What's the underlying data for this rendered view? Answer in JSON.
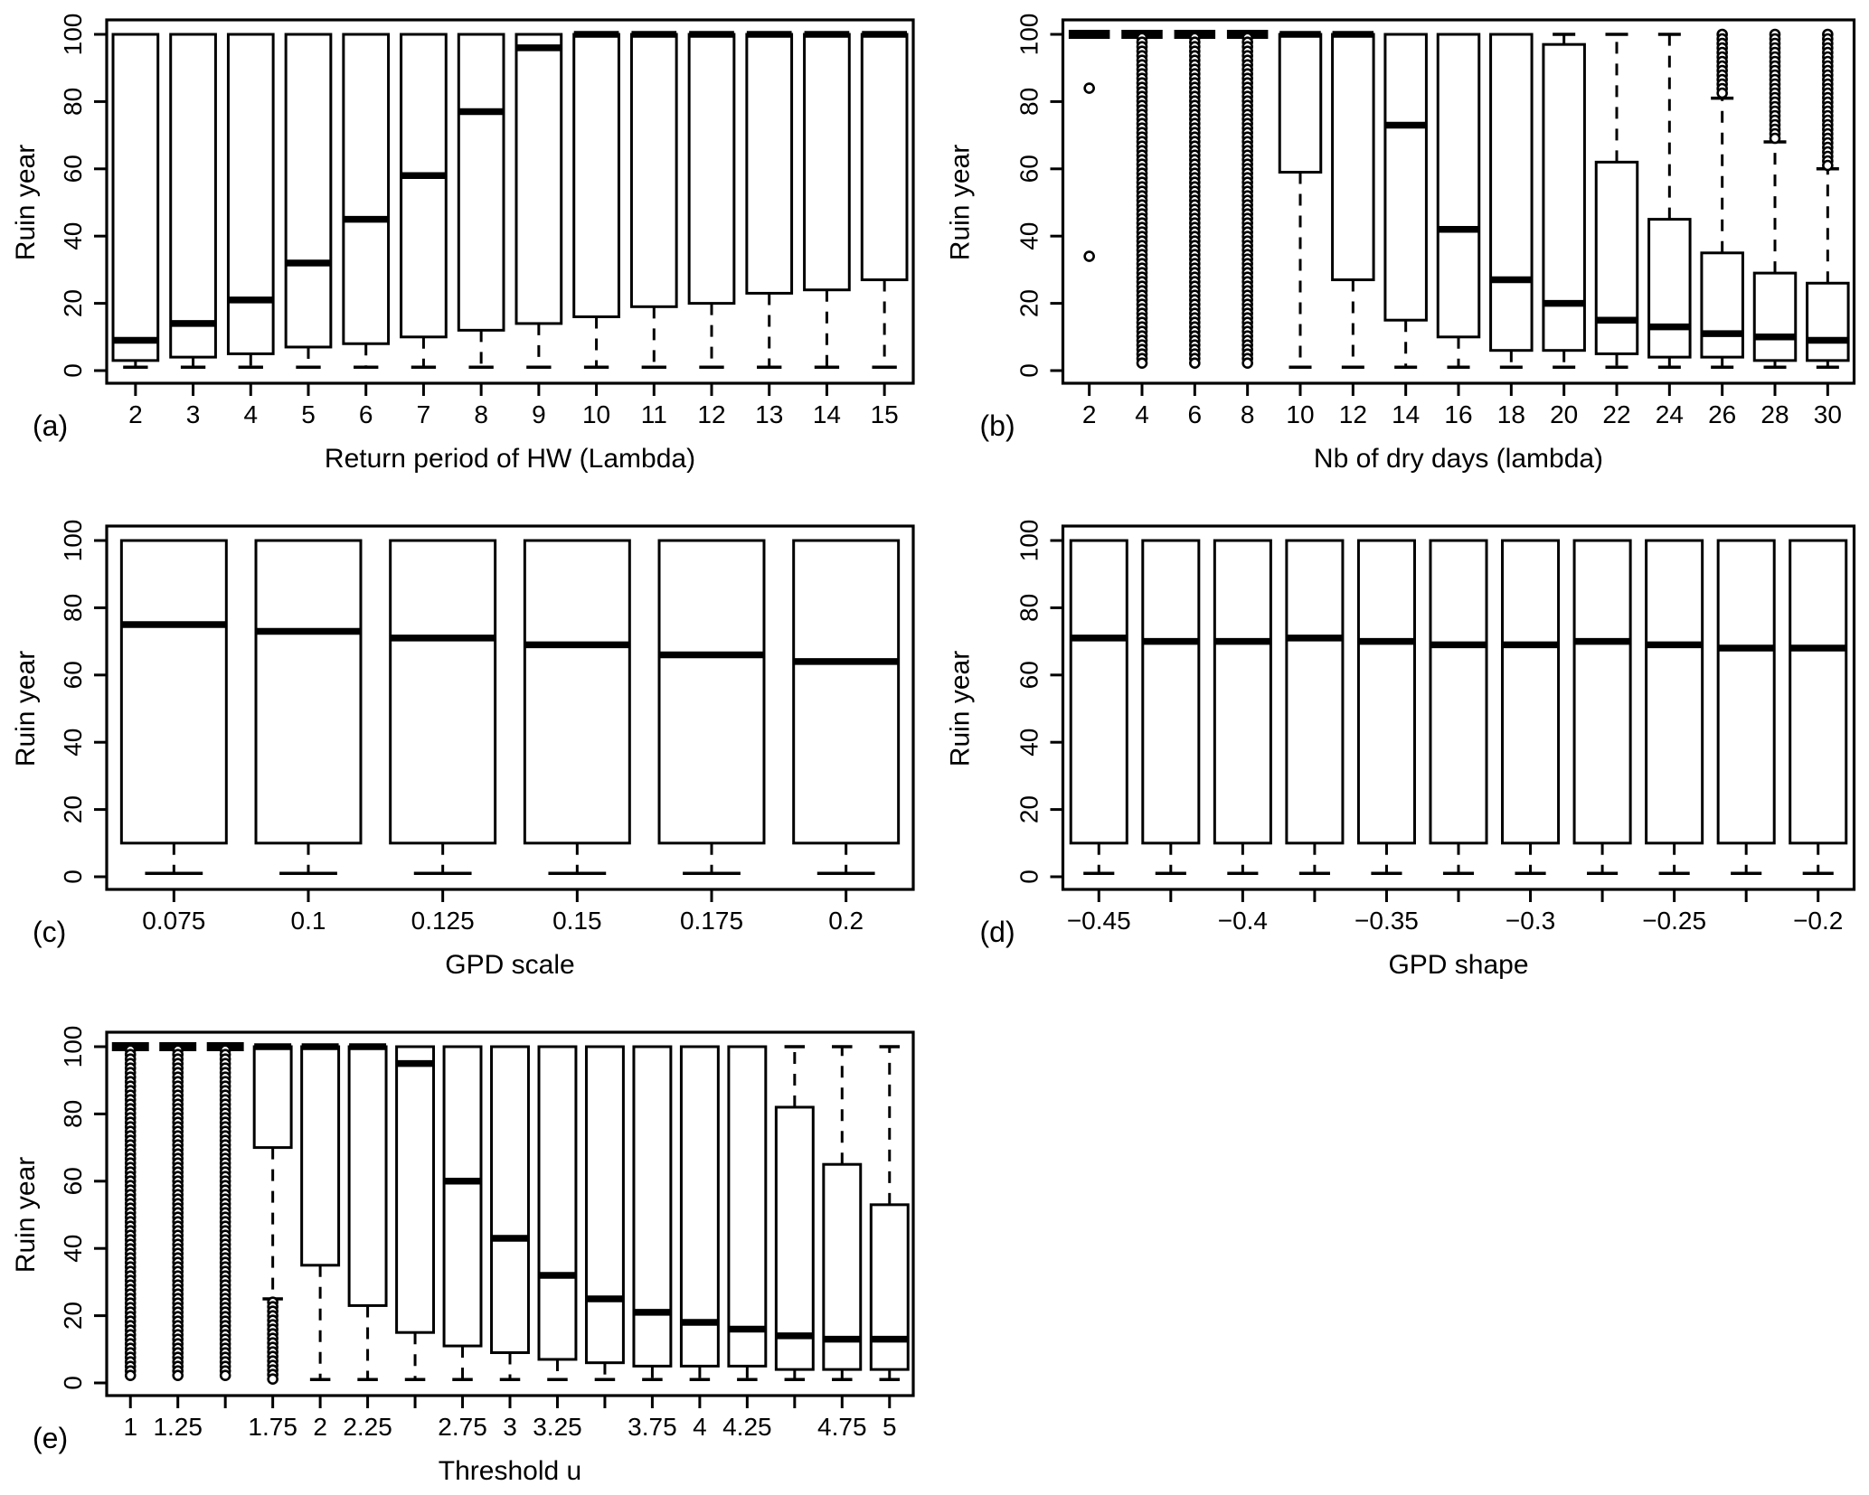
{
  "colors": {
    "ink": "#000000",
    "paper": "#ffffff"
  },
  "chart_data": [
    {
      "id": "a",
      "type": "boxplot",
      "panel_letter": "(a)",
      "xlabel": "Return period of HW (Lambda)",
      "ylabel": "Ruin year",
      "ylim": [
        0,
        100
      ],
      "yticks": [
        0,
        20,
        40,
        60,
        80,
        100
      ],
      "grid": {
        "row": 1,
        "col": 1,
        "legend": "none",
        "frame": true
      },
      "boxes": [
        {
          "x": "2",
          "label": "2",
          "q1": 3,
          "median": 9,
          "q3": 100,
          "whisker_low": 1,
          "whisker_high": 100,
          "outliers": [],
          "outlier_column": null
        },
        {
          "x": "3",
          "label": "3",
          "q1": 4,
          "median": 14,
          "q3": 100,
          "whisker_low": 1,
          "whisker_high": 100,
          "outliers": [],
          "outlier_column": null
        },
        {
          "x": "4",
          "label": "4",
          "q1": 5,
          "median": 21,
          "q3": 100,
          "whisker_low": 1,
          "whisker_high": 100,
          "outliers": [],
          "outlier_column": null
        },
        {
          "x": "5",
          "label": "5",
          "q1": 7,
          "median": 32,
          "q3": 100,
          "whisker_low": 1,
          "whisker_high": 100,
          "outliers": [],
          "outlier_column": null
        },
        {
          "x": "6",
          "label": "6",
          "q1": 8,
          "median": 45,
          "q3": 100,
          "whisker_low": 1,
          "whisker_high": 100,
          "outliers": [],
          "outlier_column": null
        },
        {
          "x": "7",
          "label": "7",
          "q1": 10,
          "median": 58,
          "q3": 100,
          "whisker_low": 1,
          "whisker_high": 100,
          "outliers": [],
          "outlier_column": null
        },
        {
          "x": "8",
          "label": "8",
          "q1": 12,
          "median": 77,
          "q3": 100,
          "whisker_low": 1,
          "whisker_high": 100,
          "outliers": [],
          "outlier_column": null
        },
        {
          "x": "9",
          "label": "9",
          "q1": 14,
          "median": 96,
          "q3": 100,
          "whisker_low": 1,
          "whisker_high": 100,
          "outliers": [],
          "outlier_column": null
        },
        {
          "x": "10",
          "label": "10",
          "q1": 16,
          "median": 100,
          "q3": 100,
          "whisker_low": 1,
          "whisker_high": 100,
          "outliers": [],
          "outlier_column": null
        },
        {
          "x": "11",
          "label": "11",
          "q1": 19,
          "median": 100,
          "q3": 100,
          "whisker_low": 1,
          "whisker_high": 100,
          "outliers": [],
          "outlier_column": null
        },
        {
          "x": "12",
          "label": "12",
          "q1": 20,
          "median": 100,
          "q3": 100,
          "whisker_low": 1,
          "whisker_high": 100,
          "outliers": [],
          "outlier_column": null
        },
        {
          "x": "13",
          "label": "13",
          "q1": 23,
          "median": 100,
          "q3": 100,
          "whisker_low": 1,
          "whisker_high": 100,
          "outliers": [],
          "outlier_column": null
        },
        {
          "x": "14",
          "label": "14",
          "q1": 24,
          "median": 100,
          "q3": 100,
          "whisker_low": 1,
          "whisker_high": 100,
          "outliers": [],
          "outlier_column": null
        },
        {
          "x": "15",
          "label": "15",
          "q1": 27,
          "median": 100,
          "q3": 100,
          "whisker_low": 1,
          "whisker_high": 100,
          "outliers": [],
          "outlier_column": null
        }
      ]
    },
    {
      "id": "b",
      "type": "boxplot",
      "panel_letter": "(b)",
      "xlabel": "Nb of dry days (lambda)",
      "ylabel": "Ruin year",
      "ylim": [
        0,
        100
      ],
      "yticks": [
        0,
        20,
        40,
        60,
        80,
        100
      ],
      "grid": {
        "row": 1,
        "col": 2,
        "legend": "none",
        "frame": true
      },
      "boxes": [
        {
          "x": "2",
          "label": "2",
          "q1": 100,
          "median": 100,
          "q3": 100,
          "whisker_low": 100,
          "whisker_high": 100,
          "outliers": [
            84,
            34
          ],
          "outlier_column": null
        },
        {
          "x": "4",
          "label": "4",
          "q1": 100,
          "median": 100,
          "q3": 100,
          "whisker_low": 100,
          "whisker_high": 100,
          "outliers": [],
          "outlier_column": {
            "from": 1,
            "to": 99
          }
        },
        {
          "x": "6",
          "label": "6",
          "q1": 100,
          "median": 100,
          "q3": 100,
          "whisker_low": 100,
          "whisker_high": 100,
          "outliers": [],
          "outlier_column": {
            "from": 1,
            "to": 99
          }
        },
        {
          "x": "8",
          "label": "8",
          "q1": 100,
          "median": 100,
          "q3": 100,
          "whisker_low": 100,
          "whisker_high": 100,
          "outliers": [],
          "outlier_column": {
            "from": 1,
            "to": 99
          }
        },
        {
          "x": "10",
          "label": "10",
          "q1": 59,
          "median": 100,
          "q3": 100,
          "whisker_low": 1,
          "whisker_high": 100,
          "outliers": [],
          "outlier_column": null
        },
        {
          "x": "12",
          "label": "12",
          "q1": 27,
          "median": 100,
          "q3": 100,
          "whisker_low": 1,
          "whisker_high": 100,
          "outliers": [],
          "outlier_column": null
        },
        {
          "x": "14",
          "label": "14",
          "q1": 15,
          "median": 73,
          "q3": 100,
          "whisker_low": 1,
          "whisker_high": 100,
          "outliers": [],
          "outlier_column": null
        },
        {
          "x": "16",
          "label": "16",
          "q1": 10,
          "median": 42,
          "q3": 100,
          "whisker_low": 1,
          "whisker_high": 100,
          "outliers": [],
          "outlier_column": null
        },
        {
          "x": "18",
          "label": "18",
          "q1": 6,
          "median": 27,
          "q3": 100,
          "whisker_low": 1,
          "whisker_high": 100,
          "outliers": [],
          "outlier_column": null
        },
        {
          "x": "20",
          "label": "20",
          "q1": 6,
          "median": 20,
          "q3": 97,
          "whisker_low": 1,
          "whisker_high": 100,
          "outliers": [],
          "outlier_column": null
        },
        {
          "x": "22",
          "label": "22",
          "q1": 5,
          "median": 15,
          "q3": 62,
          "whisker_low": 1,
          "whisker_high": 100,
          "outliers": [],
          "outlier_column": null
        },
        {
          "x": "24",
          "label": "24",
          "q1": 4,
          "median": 13,
          "q3": 45,
          "whisker_low": 1,
          "whisker_high": 100,
          "outliers": [],
          "outlier_column": null
        },
        {
          "x": "26",
          "label": "26",
          "q1": 4,
          "median": 11,
          "q3": 35,
          "whisker_low": 1,
          "whisker_high": 81,
          "outliers": [],
          "outlier_column": {
            "from": 82,
            "to": 100
          }
        },
        {
          "x": "28",
          "label": "28",
          "q1": 3,
          "median": 10,
          "q3": 29,
          "whisker_low": 1,
          "whisker_high": 68,
          "outliers": [],
          "outlier_column": {
            "from": 69,
            "to": 100
          }
        },
        {
          "x": "30",
          "label": "30",
          "q1": 3,
          "median": 9,
          "q3": 26,
          "whisker_low": 1,
          "whisker_high": 60,
          "outliers": [],
          "outlier_column": {
            "from": 61,
            "to": 100
          }
        }
      ]
    },
    {
      "id": "c",
      "type": "boxplot",
      "panel_letter": "(c)",
      "xlabel": "GPD scale",
      "ylabel": "Ruin year",
      "ylim": [
        0,
        100
      ],
      "yticks": [
        0,
        20,
        40,
        60,
        80,
        100
      ],
      "grid": {
        "row": 2,
        "col": 1,
        "legend": "none",
        "frame": true
      },
      "boxes": [
        {
          "x": "0.075",
          "label": "0.075",
          "q1": 10,
          "median": 75,
          "q3": 100,
          "whisker_low": 1,
          "whisker_high": 100,
          "outliers": [],
          "outlier_column": null
        },
        {
          "x": "0.1",
          "label": "0.1",
          "q1": 10,
          "median": 73,
          "q3": 100,
          "whisker_low": 1,
          "whisker_high": 100,
          "outliers": [],
          "outlier_column": null
        },
        {
          "x": "0.125",
          "label": "0.125",
          "q1": 10,
          "median": 71,
          "q3": 100,
          "whisker_low": 1,
          "whisker_high": 100,
          "outliers": [],
          "outlier_column": null
        },
        {
          "x": "0.15",
          "label": "0.15",
          "q1": 10,
          "median": 69,
          "q3": 100,
          "whisker_low": 1,
          "whisker_high": 100,
          "outliers": [],
          "outlier_column": null
        },
        {
          "x": "0.175",
          "label": "0.175",
          "q1": 10,
          "median": 66,
          "q3": 100,
          "whisker_low": 1,
          "whisker_high": 100,
          "outliers": [],
          "outlier_column": null
        },
        {
          "x": "0.2",
          "label": "0.2",
          "q1": 10,
          "median": 64,
          "q3": 100,
          "whisker_low": 1,
          "whisker_high": 100,
          "outliers": [],
          "outlier_column": null
        }
      ]
    },
    {
      "id": "d",
      "type": "boxplot",
      "panel_letter": "(d)",
      "xlabel": "GPD shape",
      "ylabel": "Ruin year",
      "ylim": [
        0,
        100
      ],
      "yticks": [
        0,
        20,
        40,
        60,
        80,
        100
      ],
      "grid": {
        "row": 2,
        "col": 2,
        "legend": "none",
        "frame": true
      },
      "boxes": [
        {
          "x": "-0.45",
          "label": "−0.45",
          "q1": 10,
          "median": 71,
          "q3": 100,
          "whisker_low": 1,
          "whisker_high": 100,
          "outliers": [],
          "outlier_column": null
        },
        {
          "x": "-0.425",
          "label": "",
          "q1": 10,
          "median": 70,
          "q3": 100,
          "whisker_low": 1,
          "whisker_high": 100,
          "outliers": [],
          "outlier_column": null
        },
        {
          "x": "-0.4",
          "label": "−0.4",
          "q1": 10,
          "median": 70,
          "q3": 100,
          "whisker_low": 1,
          "whisker_high": 100,
          "outliers": [],
          "outlier_column": null
        },
        {
          "x": "-0.375",
          "label": "",
          "q1": 10,
          "median": 71,
          "q3": 100,
          "whisker_low": 1,
          "whisker_high": 100,
          "outliers": [],
          "outlier_column": null
        },
        {
          "x": "-0.35",
          "label": "−0.35",
          "q1": 10,
          "median": 70,
          "q3": 100,
          "whisker_low": 1,
          "whisker_high": 100,
          "outliers": [],
          "outlier_column": null
        },
        {
          "x": "-0.325",
          "label": "",
          "q1": 10,
          "median": 69,
          "q3": 100,
          "whisker_low": 1,
          "whisker_high": 100,
          "outliers": [],
          "outlier_column": null
        },
        {
          "x": "-0.3",
          "label": "−0.3",
          "q1": 10,
          "median": 69,
          "q3": 100,
          "whisker_low": 1,
          "whisker_high": 100,
          "outliers": [],
          "outlier_column": null
        },
        {
          "x": "-0.275",
          "label": "",
          "q1": 10,
          "median": 70,
          "q3": 100,
          "whisker_low": 1,
          "whisker_high": 100,
          "outliers": [],
          "outlier_column": null
        },
        {
          "x": "-0.25",
          "label": "−0.25",
          "q1": 10,
          "median": 69,
          "q3": 100,
          "whisker_low": 1,
          "whisker_high": 100,
          "outliers": [],
          "outlier_column": null
        },
        {
          "x": "-0.225",
          "label": "",
          "q1": 10,
          "median": 68,
          "q3": 100,
          "whisker_low": 1,
          "whisker_high": 100,
          "outliers": [],
          "outlier_column": null
        },
        {
          "x": "-0.2",
          "label": "−0.2",
          "q1": 10,
          "median": 68,
          "q3": 100,
          "whisker_low": 1,
          "whisker_high": 100,
          "outliers": [],
          "outlier_column": null
        }
      ]
    },
    {
      "id": "e",
      "type": "boxplot",
      "panel_letter": "(e)",
      "xlabel": "Threshold u",
      "ylabel": "Ruin year",
      "ylim": [
        0,
        100
      ],
      "yticks": [
        0,
        20,
        40,
        60,
        80,
        100
      ],
      "grid": {
        "row": 3,
        "col": 1,
        "legend": "none",
        "frame": true
      },
      "boxes": [
        {
          "x": "1",
          "label": "1",
          "q1": 100,
          "median": 100,
          "q3": 100,
          "whisker_low": 100,
          "whisker_high": 100,
          "outliers": [],
          "outlier_column": {
            "from": 1,
            "to": 99
          }
        },
        {
          "x": "1.25",
          "label": "1.25",
          "q1": 100,
          "median": 100,
          "q3": 100,
          "whisker_low": 100,
          "whisker_high": 100,
          "outliers": [],
          "outlier_column": {
            "from": 1,
            "to": 99
          }
        },
        {
          "x": "1.5",
          "label": "",
          "q1": 100,
          "median": 100,
          "q3": 100,
          "whisker_low": 100,
          "whisker_high": 100,
          "outliers": [],
          "outlier_column": {
            "from": 1,
            "to": 99
          }
        },
        {
          "x": "1.75",
          "label": "1.75",
          "q1": 70,
          "median": 100,
          "q3": 100,
          "whisker_low": 25,
          "whisker_high": 100,
          "outliers": [],
          "outlier_column": {
            "from": 1,
            "to": 24
          }
        },
        {
          "x": "2",
          "label": "2",
          "q1": 35,
          "median": 100,
          "q3": 100,
          "whisker_low": 1,
          "whisker_high": 100,
          "outliers": [],
          "outlier_column": null
        },
        {
          "x": "2.25",
          "label": "2.25",
          "q1": 23,
          "median": 100,
          "q3": 100,
          "whisker_low": 1,
          "whisker_high": 100,
          "outliers": [],
          "outlier_column": null
        },
        {
          "x": "2.5",
          "label": "",
          "q1": 15,
          "median": 95,
          "q3": 100,
          "whisker_low": 1,
          "whisker_high": 100,
          "outliers": [],
          "outlier_column": null
        },
        {
          "x": "2.75",
          "label": "2.75",
          "q1": 11,
          "median": 60,
          "q3": 100,
          "whisker_low": 1,
          "whisker_high": 100,
          "outliers": [],
          "outlier_column": null
        },
        {
          "x": "3",
          "label": "3",
          "q1": 9,
          "median": 43,
          "q3": 100,
          "whisker_low": 1,
          "whisker_high": 100,
          "outliers": [],
          "outlier_column": null
        },
        {
          "x": "3.25",
          "label": "3.25",
          "q1": 7,
          "median": 32,
          "q3": 100,
          "whisker_low": 1,
          "whisker_high": 100,
          "outliers": [],
          "outlier_column": null
        },
        {
          "x": "3.5",
          "label": "",
          "q1": 6,
          "median": 25,
          "q3": 100,
          "whisker_low": 1,
          "whisker_high": 100,
          "outliers": [],
          "outlier_column": null
        },
        {
          "x": "3.75",
          "label": "3.75",
          "q1": 5,
          "median": 21,
          "q3": 100,
          "whisker_low": 1,
          "whisker_high": 100,
          "outliers": [],
          "outlier_column": null
        },
        {
          "x": "4",
          "label": "4",
          "q1": 5,
          "median": 18,
          "q3": 100,
          "whisker_low": 1,
          "whisker_high": 100,
          "outliers": [],
          "outlier_column": null
        },
        {
          "x": "4.25",
          "label": "4.25",
          "q1": 5,
          "median": 16,
          "q3": 100,
          "whisker_low": 1,
          "whisker_high": 100,
          "outliers": [],
          "outlier_column": null
        },
        {
          "x": "4.5",
          "label": "",
          "q1": 4,
          "median": 14,
          "q3": 82,
          "whisker_low": 1,
          "whisker_high": 100,
          "outliers": [],
          "outlier_column": null
        },
        {
          "x": "4.75",
          "label": "4.75",
          "q1": 4,
          "median": 13,
          "q3": 65,
          "whisker_low": 1,
          "whisker_high": 100,
          "outliers": [],
          "outlier_column": null
        },
        {
          "x": "5",
          "label": "5",
          "q1": 4,
          "median": 13,
          "q3": 53,
          "whisker_low": 1,
          "whisker_high": 100,
          "outliers": [],
          "outlier_column": null
        }
      ]
    }
  ]
}
